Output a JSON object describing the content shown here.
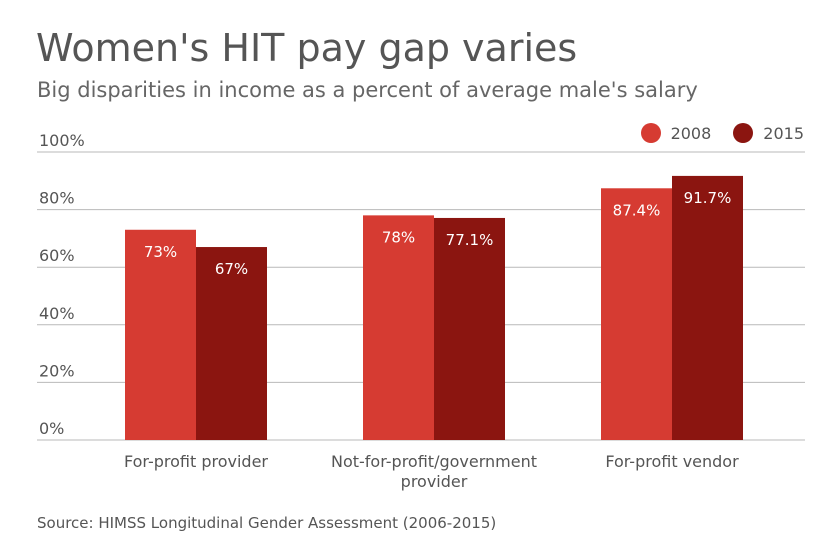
{
  "title": "Women's HIT pay gap varies",
  "subtitle": "Big disparities in income as a percent of average male's salary",
  "source": "Source: HIMSS Longitudinal Gender Assessment (2006-2015)",
  "colors": {
    "series_2008": "#d63b32",
    "series_2015": "#8b1510",
    "grid": "#b9b9b9",
    "axis_text": "#555555"
  },
  "chart_data": {
    "type": "bar",
    "categories": [
      [
        "For-profit provider"
      ],
      [
        "Not-for-profit/government",
        "provider"
      ],
      [
        "For-profit vendor"
      ]
    ],
    "series": [
      {
        "name": "2008",
        "values": [
          73,
          78,
          87.4
        ],
        "labels": [
          "73%",
          "78%",
          "87.4%"
        ]
      },
      {
        "name": "2015",
        "values": [
          67,
          77.1,
          91.7
        ],
        "labels": [
          "67%",
          "77.1%",
          "91.7%"
        ]
      }
    ],
    "y_ticks": [
      {
        "value": 0,
        "label": "0%"
      },
      {
        "value": 20,
        "label": "20%"
      },
      {
        "value": 40,
        "label": "40%"
      },
      {
        "value": 60,
        "label": "60%"
      },
      {
        "value": 80,
        "label": "80%"
      },
      {
        "value": 100,
        "label": "100%"
      }
    ],
    "ylim": [
      0,
      100
    ],
    "grid": true,
    "legend_position": "top-right"
  }
}
